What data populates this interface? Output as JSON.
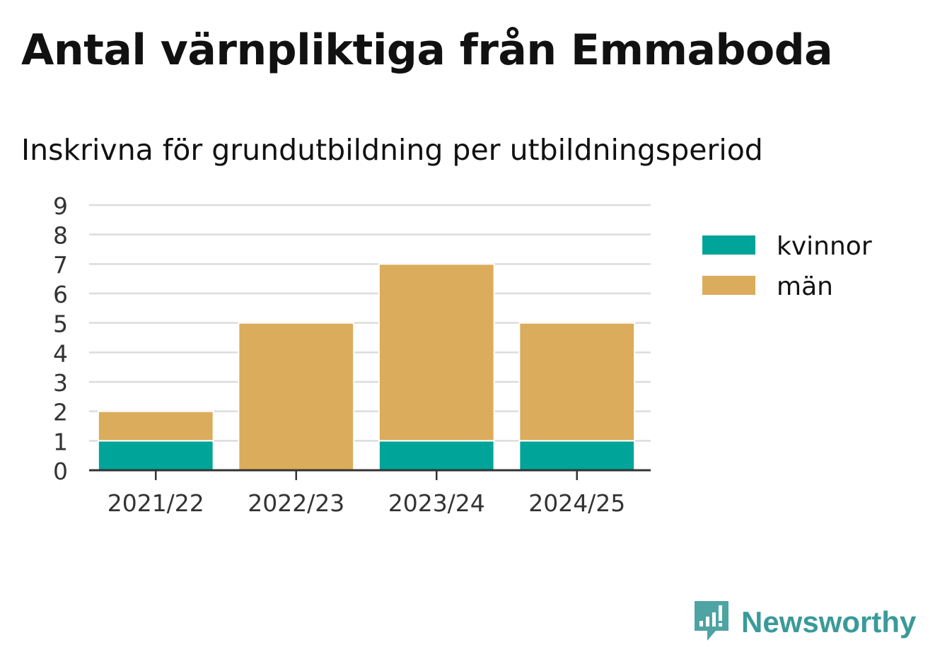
{
  "title": "Antal värnpliktiga från Emmaboda",
  "subtitle": "Inskrivna för grundutbildning per utbildningsperiod",
  "brand": {
    "name": "Newsworthy",
    "icon": "newsworthy-logo-icon",
    "color": "#3a9a99"
  },
  "chart_data": {
    "type": "bar",
    "stacked": true,
    "categories": [
      "2021/22",
      "2022/23",
      "2023/24",
      "2024/25"
    ],
    "series": [
      {
        "name": "kvinnor",
        "values": [
          1,
          0,
          1,
          1
        ],
        "color": "#00a499"
      },
      {
        "name": "män",
        "values": [
          1,
          5,
          6,
          4
        ],
        "color": "#dbac5b"
      }
    ],
    "y_ticks": [
      "0",
      "1",
      "2",
      "3",
      "4",
      "5",
      "6",
      "7",
      "8",
      "9"
    ],
    "ylim": [
      0,
      9
    ],
    "grid": true,
    "legend_position": "right",
    "xlabel": "",
    "ylabel": ""
  }
}
